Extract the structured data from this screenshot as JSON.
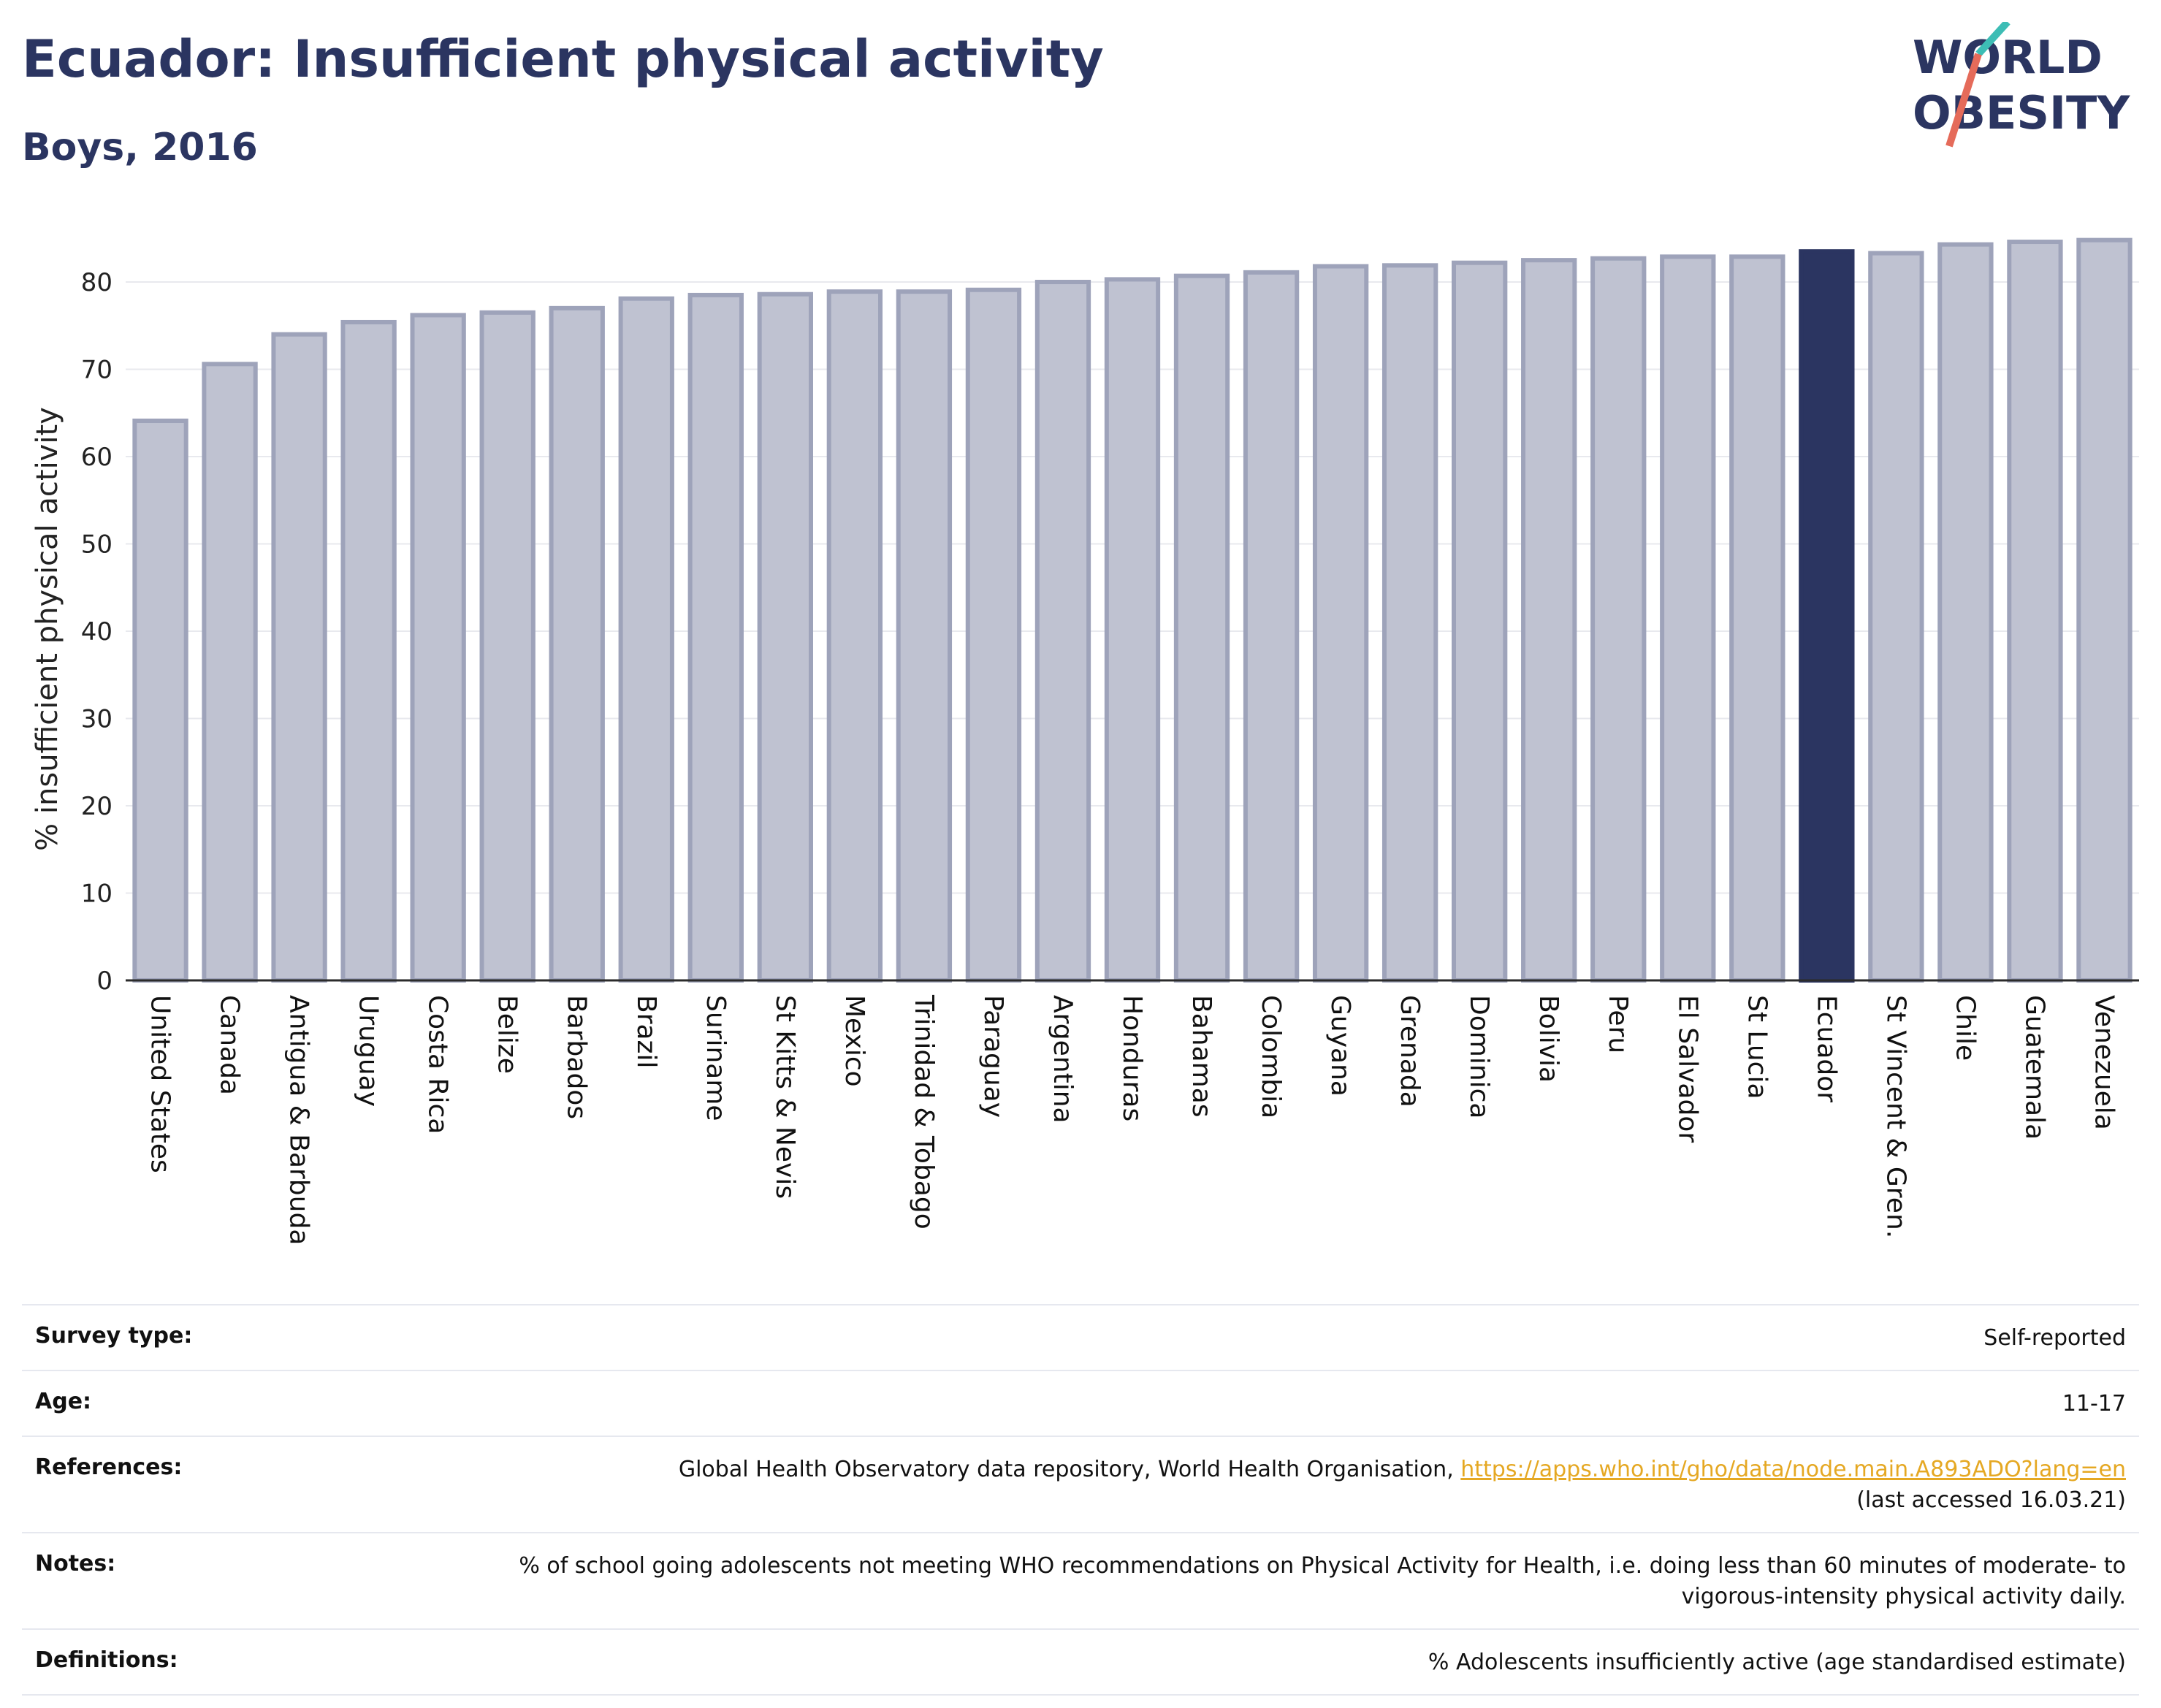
{
  "header": {
    "title": "Ecuador: Insufficient physical activity",
    "subtitle": "Boys, 2016"
  },
  "logo": {
    "line1": "WORLD",
    "line2": "OBESITY",
    "accent_teal": "#3dbdb5",
    "accent_coral": "#e56b5a"
  },
  "colors": {
    "bar_fill": "#bfc2d1",
    "bar_stroke": "#9ea3ba",
    "highlight": "#2b3561",
    "title": "#2b3561",
    "link": "#e5a823"
  },
  "chart_data": {
    "type": "bar",
    "title": "",
    "ylabel": "% insufficient physical activity",
    "xlabel": "",
    "ylim": [
      0,
      85
    ],
    "yticks": [
      0,
      10,
      20,
      30,
      40,
      50,
      60,
      70,
      80
    ],
    "grid": true,
    "highlight": "Ecuador",
    "categories": [
      "United States",
      "Canada",
      "Antigua & Barbuda",
      "Uruguay",
      "Costa Rica",
      "Belize",
      "Barbados",
      "Brazil",
      "Suriname",
      "St Kitts & Nevis",
      "Mexico",
      "Trinidad & Tobago",
      "Paraguay",
      "Argentina",
      "Honduras",
      "Bahamas",
      "Colombia",
      "Guyana",
      "Grenada",
      "Dominica",
      "Bolivia",
      "Peru",
      "El Salvador",
      "St Lucia",
      "Ecuador",
      "St Vincent & Gren.",
      "Chile",
      "Guatemala",
      "Venezuela"
    ],
    "values": [
      64.1,
      70.6,
      74.0,
      75.4,
      76.2,
      76.5,
      77.0,
      78.1,
      78.5,
      78.6,
      78.9,
      78.9,
      79.1,
      80.0,
      80.3,
      80.7,
      81.1,
      81.8,
      81.9,
      82.2,
      82.5,
      82.7,
      82.9,
      82.9,
      83.5,
      83.3,
      84.3,
      84.6,
      84.8
    ]
  },
  "info": [
    {
      "label": "Survey type:",
      "value": "Self-reported"
    },
    {
      "label": "Age:",
      "value": "11-17"
    },
    {
      "label": "References:",
      "value": "Global Health Observatory data repository, World Health Organisation, ",
      "link": "https://apps.who.int/gho/data/node.main.A893ADO?lang=en",
      "suffix": "(last accessed 16.03.21)"
    },
    {
      "label": "Notes:",
      "value": "% of school going adolescents not meeting WHO recommendations on Physical Activity for Health, i.e. doing less than 60 minutes of moderate- to vigorous-intensity physical activity daily."
    },
    {
      "label": "Definitions:",
      "value": "% Adolescents insufficiently active (age standardised estimate)"
    }
  ]
}
